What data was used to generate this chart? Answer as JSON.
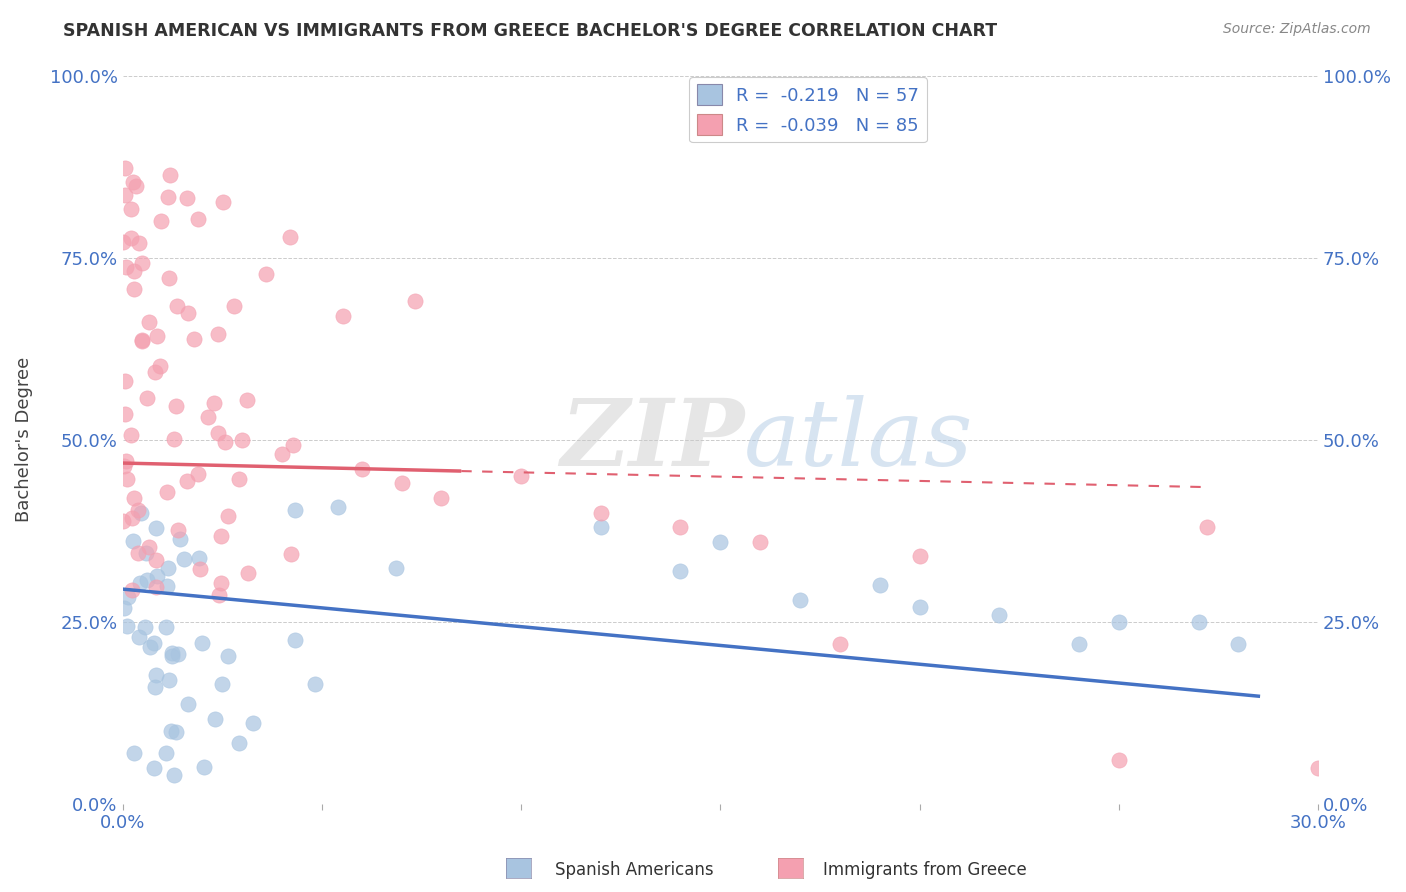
{
  "title": "SPANISH AMERICAN VS IMMIGRANTS FROM GREECE BACHELOR'S DEGREE CORRELATION CHART",
  "source_text": "Source: ZipAtlas.com",
  "ylabel": "Bachelor's Degree",
  "xlim": [
    0.0,
    0.3
  ],
  "ylim": [
    0.0,
    1.0
  ],
  "ytick_labels": [
    "0.0%",
    "25.0%",
    "50.0%",
    "75.0%",
    "100.0%"
  ],
  "ytick_values": [
    0.0,
    0.25,
    0.5,
    0.75,
    1.0
  ],
  "xtick_labels": [
    "0.0%",
    "",
    "",
    "",
    "",
    "",
    "30.0%"
  ],
  "xtick_values": [
    0.0,
    0.05,
    0.1,
    0.15,
    0.2,
    0.25,
    0.3
  ],
  "legend_label1": "Spanish Americans",
  "legend_label2": "Immigrants from Greece",
  "r1": -0.219,
  "n1": 57,
  "r2": -0.039,
  "n2": 85,
  "color_blue": "#a8c4e0",
  "color_pink": "#f4a0b0",
  "color_blue_line": "#4472c4",
  "color_pink_line": "#e06070",
  "background_color": "#ffffff",
  "grid_color": "#cccccc",
  "watermark_color": "#d0dff0",
  "title_color": "#333333",
  "source_color": "#888888",
  "tick_color": "#4472c4"
}
